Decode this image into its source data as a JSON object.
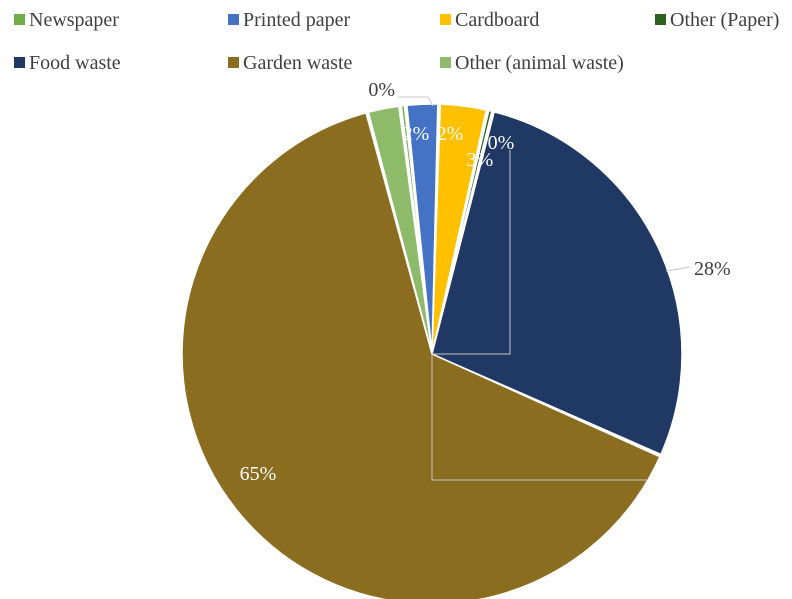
{
  "chart_data": {
    "type": "pie",
    "title": "",
    "legend": "top",
    "slices": [
      {
        "name": "Newspaper",
        "value": 0,
        "label": "0%",
        "color": "#70ad47"
      },
      {
        "name": "Printed paper",
        "value": 2,
        "label": "2%",
        "color": "#4472c4"
      },
      {
        "name": "Cardboard",
        "value": 3,
        "label": "3%",
        "color": "#ffc000"
      },
      {
        "name": "Other (Paper)",
        "value": 0,
        "label": "0%",
        "color": "#2d5f1f"
      },
      {
        "name": "Food waste",
        "value": 28,
        "label": "28%",
        "color": "#203864"
      },
      {
        "name": "Garden waste",
        "value": 65,
        "label": "65%",
        "color": "#8a6d1f"
      },
      {
        "name": "Other (animal waste)",
        "value": 2,
        "label": "2%",
        "color": "#8dbb6a"
      }
    ]
  }
}
